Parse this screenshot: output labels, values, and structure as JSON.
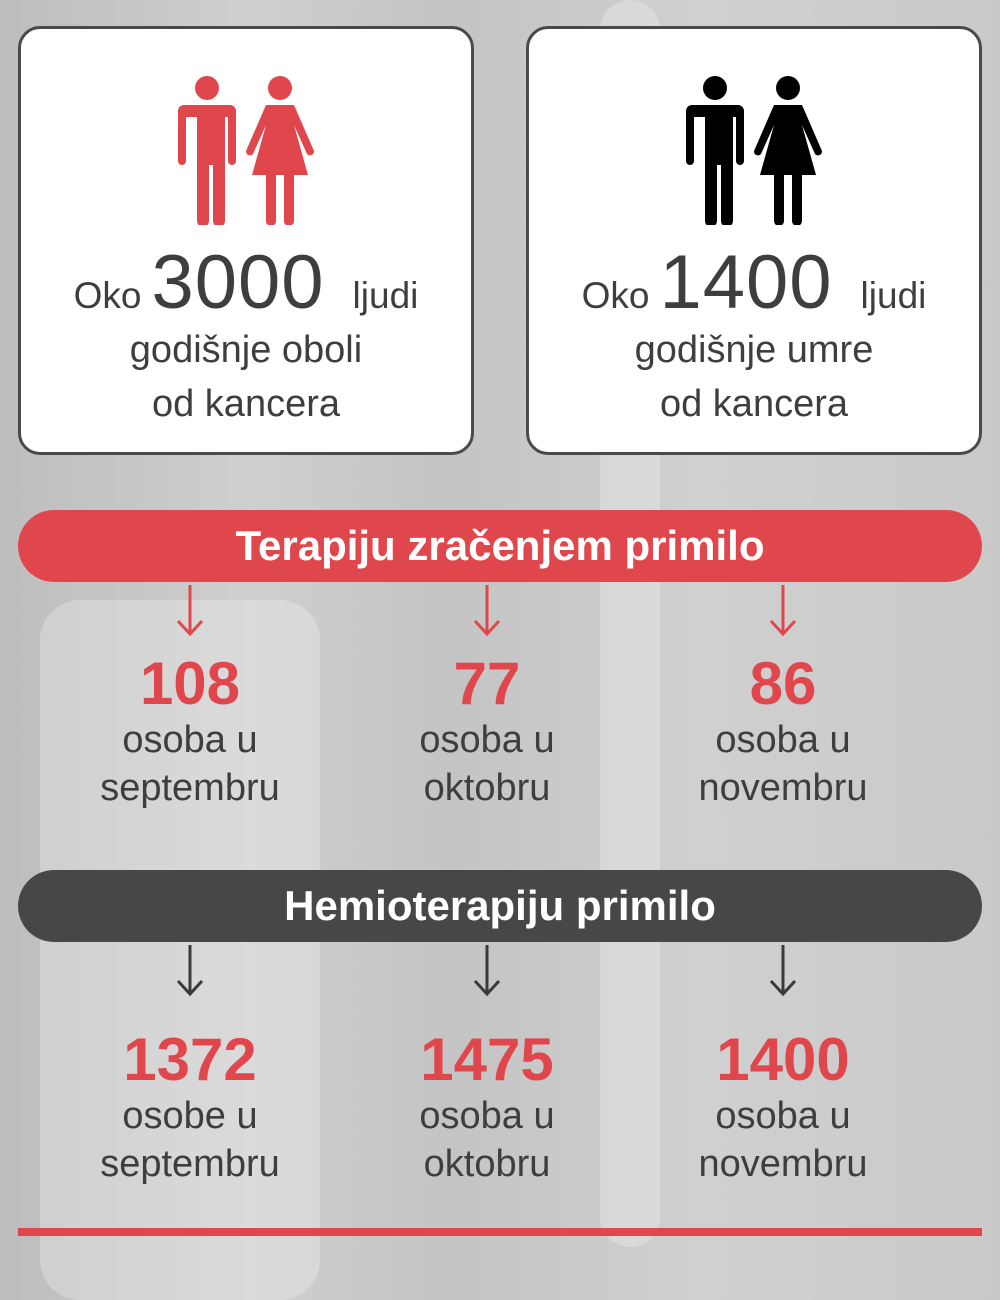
{
  "colors": {
    "accent": "#e0474d",
    "dark": "#474747",
    "text": "#3e3e3e"
  },
  "cards": [
    {
      "icon": "people-red-icon",
      "prefix": "Oko",
      "number": "3000",
      "suffix": "ljudi",
      "line1": "godišnje oboli",
      "line2": "od kancera",
      "icon_color": "#e0474d"
    },
    {
      "icon": "people-black-icon",
      "prefix": "Oko",
      "number": "1400",
      "suffix": "ljudi",
      "line1": "godišnje umre",
      "line2": "od kancera",
      "icon_color": "#000000"
    }
  ],
  "radiation": {
    "title": "Terapiju zračenjem primilo",
    "items": [
      {
        "number": "108",
        "line1": "osoba u",
        "line2": "septembru"
      },
      {
        "number": "77",
        "line1": "osoba u",
        "line2": "oktobru"
      },
      {
        "number": "86",
        "line1": "osoba u",
        "line2": "novembru"
      }
    ]
  },
  "chemo": {
    "title": "Hemioterapiju primilo",
    "items": [
      {
        "number": "1372",
        "line1": "osobe u",
        "line2": "septembru"
      },
      {
        "number": "1475",
        "line1": "osoba u",
        "line2": "oktobru"
      },
      {
        "number": "1400",
        "line1": "osoba u",
        "line2": "novembru"
      }
    ]
  }
}
